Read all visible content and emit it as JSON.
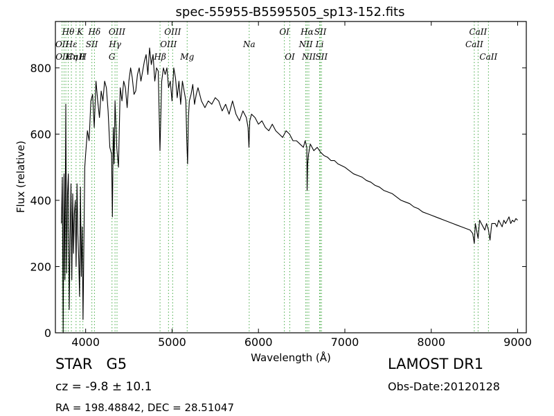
{
  "chart_data": {
    "type": "line",
    "title": "spec-55955-B5595505_sp13-152.fits",
    "xlabel": "Wavelength (Å)",
    "ylabel": "Flux (relative)",
    "xlim": [
      3650,
      9100
    ],
    "ylim": [
      0,
      940
    ],
    "xticks": [
      4000,
      5000,
      6000,
      7000,
      8000,
      9000
    ],
    "yticks": [
      0,
      200,
      400,
      600,
      800
    ],
    "grid": false,
    "legend": "none",
    "line_color": "#000000",
    "marker_color": "#44aa44",
    "series": [
      {
        "x": [
          3720,
          3730,
          3740,
          3750,
          3760,
          3770,
          3780,
          3790,
          3800,
          3810,
          3820,
          3830,
          3840,
          3850,
          3860,
          3870,
          3880,
          3890,
          3900,
          3910,
          3920,
          3930,
          3940,
          3950,
          3960,
          3970,
          3980,
          3990,
          4000,
          4020,
          4040,
          4060,
          4080,
          4100,
          4120,
          4140,
          4160,
          4180,
          4200,
          4220,
          4240,
          4260,
          4280,
          4300,
          4310,
          4320,
          4330,
          4340,
          4360,
          4380,
          4400,
          4420,
          4440,
          4460,
          4480,
          4500,
          4520,
          4540,
          4560,
          4580,
          4600,
          4620,
          4640,
          4660,
          4680,
          4700,
          4720,
          4740,
          4760,
          4780,
          4800,
          4820,
          4840,
          4860,
          4880,
          4900,
          4920,
          4940,
          4960,
          4980,
          5000,
          5020,
          5040,
          5060,
          5080,
          5100,
          5120,
          5140,
          5160,
          5170,
          5180,
          5190,
          5200,
          5220,
          5240,
          5260,
          5280,
          5300,
          5340,
          5380,
          5420,
          5460,
          5500,
          5540,
          5580,
          5620,
          5660,
          5700,
          5740,
          5780,
          5820,
          5860,
          5880,
          5890,
          5900,
          5920,
          5960,
          6000,
          6040,
          6080,
          6120,
          6160,
          6200,
          6240,
          6280,
          6320,
          6360,
          6400,
          6440,
          6480,
          6520,
          6540,
          6560,
          6563,
          6570,
          6580,
          6600,
          6640,
          6680,
          6720,
          6760,
          6800,
          6840,
          6880,
          6920,
          6960,
          7000,
          7050,
          7100,
          7150,
          7200,
          7250,
          7300,
          7350,
          7400,
          7450,
          7500,
          7550,
          7600,
          7650,
          7700,
          7750,
          7800,
          7850,
          7900,
          7950,
          8000,
          8050,
          8100,
          8150,
          8200,
          8250,
          8300,
          8350,
          8400,
          8450,
          8480,
          8498,
          8510,
          8542,
          8560,
          8600,
          8620,
          8640,
          8662,
          8680,
          8700,
          8720,
          8740,
          8760,
          8780,
          8800,
          8820,
          8840,
          8860,
          8880,
          8900,
          8920,
          8940,
          8960,
          8980,
          9000
        ],
        "y": [
          330,
          470,
          0,
          480,
          160,
          690,
          180,
          420,
          480,
          70,
          280,
          450,
          160,
          420,
          240,
          360,
          400,
          200,
          450,
          300,
          220,
          110,
          440,
          170,
          320,
          40,
          280,
          500,
          540,
          610,
          580,
          700,
          720,
          620,
          760,
          700,
          650,
          730,
          700,
          760,
          740,
          670,
          560,
          540,
          350,
          620,
          510,
          700,
          560,
          500,
          740,
          700,
          760,
          740,
          680,
          760,
          800,
          770,
          720,
          730,
          780,
          800,
          760,
          790,
          820,
          840,
          780,
          860,
          810,
          840,
          760,
          800,
          790,
          550,
          760,
          800,
          780,
          800,
          740,
          760,
          700,
          800,
          770,
          710,
          760,
          690,
          760,
          730,
          700,
          580,
          510,
          650,
          700,
          720,
          750,
          690,
          720,
          740,
          700,
          680,
          700,
          690,
          710,
          700,
          670,
          690,
          660,
          700,
          660,
          640,
          670,
          650,
          620,
          560,
          640,
          660,
          650,
          630,
          640,
          620,
          610,
          630,
          610,
          600,
          590,
          610,
          600,
          580,
          580,
          570,
          560,
          580,
          560,
          430,
          510,
          540,
          570,
          550,
          560,
          545,
          535,
          530,
          520,
          520,
          510,
          505,
          500,
          490,
          480,
          475,
          470,
          460,
          455,
          445,
          440,
          430,
          425,
          420,
          410,
          400,
          395,
          390,
          380,
          375,
          365,
          360,
          355,
          350,
          345,
          340,
          335,
          330,
          325,
          320,
          315,
          310,
          300,
          270,
          330,
          285,
          340,
          320,
          310,
          330,
          310,
          280,
          330,
          330,
          330,
          320,
          340,
          330,
          320,
          340,
          330,
          340,
          350,
          330,
          340,
          335,
          345,
          340
        ]
      }
    ],
    "line_labels": [
      {
        "text": "Hθ",
        "wave": 3798,
        "row": 0
      },
      {
        "text": "K",
        "wave": 3934,
        "row": 0
      },
      {
        "text": "Hδ",
        "wave": 4102,
        "row": 0
      },
      {
        "text": "OIII",
        "wave": 4363,
        "row": 0
      },
      {
        "text": "OIII",
        "wave": 5007,
        "row": 0
      },
      {
        "text": "OI",
        "wave": 6300,
        "row": 0
      },
      {
        "text": "Hα",
        "wave": 6563,
        "row": 0
      },
      {
        "text": "SII",
        "wave": 6716,
        "row": 0
      },
      {
        "text": "CaII",
        "wave": 8542,
        "row": 0
      },
      {
        "text": "OII",
        "wave": 3727,
        "row": 1
      },
      {
        "text": "Hε",
        "wave": 3835,
        "row": 1
      },
      {
        "text": "SII",
        "wave": 4072,
        "row": 1
      },
      {
        "text": "Hγ",
        "wave": 4340,
        "row": 1
      },
      {
        "text": "OIII",
        "wave": 4959,
        "row": 1
      },
      {
        "text": "Na",
        "wave": 5893,
        "row": 1
      },
      {
        "text": "NII",
        "wave": 6548,
        "row": 1
      },
      {
        "text": "Li",
        "wave": 6708,
        "row": 1
      },
      {
        "text": "CaII",
        "wave": 8498,
        "row": 1
      },
      {
        "text": "OII",
        "wave": 3729,
        "row": 2
      },
      {
        "text": "Hη",
        "wave": 3835,
        "row": 2
      },
      {
        "text": "CaII",
        "wave": 3890,
        "row": 2
      },
      {
        "text": "H",
        "wave": 3968,
        "row": 2
      },
      {
        "text": "G",
        "wave": 4305,
        "row": 2
      },
      {
        "text": "Hβ",
        "wave": 4861,
        "row": 2
      },
      {
        "text": "Mg",
        "wave": 5175,
        "row": 2
      },
      {
        "text": "OI",
        "wave": 6363,
        "row": 2
      },
      {
        "text": "NII",
        "wave": 6583,
        "row": 2
      },
      {
        "text": "SII",
        "wave": 6730,
        "row": 2
      },
      {
        "text": "CaII",
        "wave": 8662,
        "row": 2
      }
    ],
    "marker_lines": [
      3727,
      3750,
      3771,
      3798,
      3835,
      3889,
      3934,
      3968,
      4072,
      4102,
      4305,
      4340,
      4363,
      4861,
      4959,
      5007,
      5175,
      5893,
      6300,
      6363,
      6548,
      6563,
      6583,
      6708,
      6716,
      6730,
      8498,
      8542,
      8662
    ]
  },
  "info": {
    "object_class": "STAR",
    "subclass": "G5",
    "cz": "cz = -9.8 ± 10.1",
    "coords": "RA = 198.48842, DEC = 28.51047",
    "survey": "LAMOST DR1",
    "obs_date": "Obs-Date:20120128"
  }
}
